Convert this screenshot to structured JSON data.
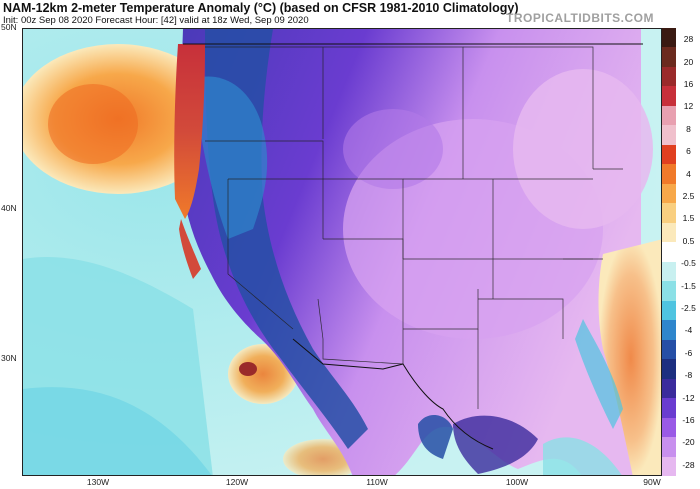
{
  "header": {
    "title": "NAM-12km 2-meter Temperature Anomaly (°C) (based on CFSR 1981-2010 Climatology)",
    "subtitle": "Init: 00z Sep 08 2020   Forecast Hour: [42]   valid at 18z Wed, Sep 09 2020",
    "brand": "TROPICALTIDBITS.COM"
  },
  "axes": {
    "lat_labels": [
      "50N",
      "40N",
      "30N"
    ],
    "lon_labels": [
      "130W",
      "120W",
      "110W",
      "100W",
      "90W"
    ]
  },
  "colorbar": {
    "labels": [
      "28",
      "20",
      "16",
      "12",
      "8",
      "6",
      "4",
      "2.5",
      "1.5",
      "0.5",
      "-0.5",
      "-1.5",
      "-2.5",
      "-4",
      "-6",
      "-8",
      "-12",
      "-16",
      "-20",
      "-28"
    ],
    "colors": [
      "#3a1a12",
      "#6b2a1e",
      "#9a2a2a",
      "#c7303a",
      "#e8a0b0",
      "#f0c0cc",
      "#e04020",
      "#f07a2a",
      "#f7a84a",
      "#f9cf80",
      "#fbe9bb",
      "#ffffff",
      "#c8f0f0",
      "#8be0e6",
      "#4fc4e0",
      "#2f86cc",
      "#264fa6",
      "#1d2f80",
      "#3b2b9c",
      "#6a3cd0",
      "#9a5ae6",
      "#c890ee",
      "#e6b8f0"
    ]
  }
}
